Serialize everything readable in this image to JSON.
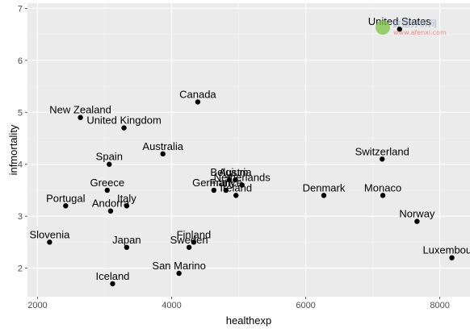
{
  "chart_data": {
    "type": "scatter",
    "xlabel": "healthexp",
    "ylabel": "infmortality",
    "xlim": [
      1850,
      8450
    ],
    "ylim": [
      1.45,
      7.1
    ],
    "x_ticks": [
      2000,
      4000,
      6000,
      8000
    ],
    "y_ticks": [
      2,
      3,
      4,
      5,
      6,
      7
    ],
    "grid": true,
    "points": [
      {
        "label": "United States",
        "x": 7400,
        "y": 6.6
      },
      {
        "label": "Canada",
        "x": 4390,
        "y": 5.2
      },
      {
        "label": "New Zealand",
        "x": 2640,
        "y": 4.9
      },
      {
        "label": "United Kingdom",
        "x": 3290,
        "y": 4.7
      },
      {
        "label": "Australia",
        "x": 3870,
        "y": 4.2
      },
      {
        "label": "Spain",
        "x": 3070,
        "y": 4.0
      },
      {
        "label": "Switzerland",
        "x": 7140,
        "y": 4.1
      },
      {
        "label": "Netherlands",
        "x": 5050,
        "y": 3.6
      },
      {
        "label": "Austria",
        "x": 4950,
        "y": 3.7
      },
      {
        "label": "Belgium",
        "x": 4860,
        "y": 3.7
      },
      {
        "label": "France",
        "x": 4810,
        "y": 3.5
      },
      {
        "label": "Germany",
        "x": 4630,
        "y": 3.5
      },
      {
        "label": "Ireland",
        "x": 4960,
        "y": 3.4
      },
      {
        "label": "Greece",
        "x": 3040,
        "y": 3.5
      },
      {
        "label": "Denmark",
        "x": 6270,
        "y": 3.4
      },
      {
        "label": "Monaco",
        "x": 7150,
        "y": 3.4
      },
      {
        "label": "Portugal",
        "x": 2420,
        "y": 3.2
      },
      {
        "label": "Italy",
        "x": 3330,
        "y": 3.2
      },
      {
        "label": "Andorra",
        "x": 3090,
        "y": 3.1
      },
      {
        "label": "Norway",
        "x": 7660,
        "y": 2.9
      },
      {
        "label": "Slovenia",
        "x": 2180,
        "y": 2.5
      },
      {
        "label": "Finland",
        "x": 4330,
        "y": 2.5
      },
      {
        "label": "Sweden",
        "x": 4260,
        "y": 2.4
      },
      {
        "label": "Japan",
        "x": 3330,
        "y": 2.4
      },
      {
        "label": "Luxembourg",
        "x": 8180,
        "y": 2.2
      },
      {
        "label": "San Marino",
        "x": 4110,
        "y": 1.9
      },
      {
        "label": "Iceland",
        "x": 3120,
        "y": 1.7
      }
    ]
  },
  "watermark": {
    "brand": "数据分析网",
    "url": "www.afenxi.com",
    "accent": "#7cc444"
  }
}
